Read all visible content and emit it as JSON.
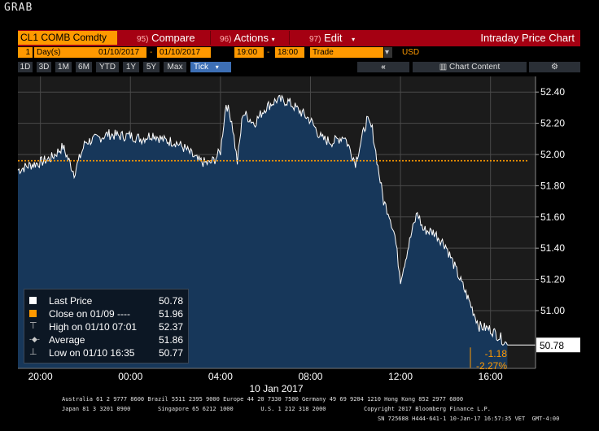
{
  "grab": "GRAB",
  "toolbar": {
    "ticker": "CL1 COMB Comdty",
    "compare_num": "95)",
    "compare": "Compare",
    "actions_num": "96)",
    "actions": "Actions",
    "edit_num": "97)",
    "edit": "Edit",
    "title": "Intraday Price Chart"
  },
  "params": {
    "period_count": "1",
    "period_unit": "Day(s)",
    "start_date": "01/10/2017",
    "dash": "-",
    "end_date": "01/10/2017",
    "start_time": "19:00",
    "dash2": "-",
    "end_time": "18:00",
    "mode": "Trade",
    "currency": "USD"
  },
  "tabs": [
    "1D",
    "3D",
    "1M",
    "6M",
    "YTD",
    "1Y",
    "5Y",
    "Max",
    "Tick"
  ],
  "active_tab": "Tick",
  "chart_content": "Chart Content",
  "legend": {
    "last_price_label": "Last Price",
    "last_price_value": "50.78",
    "close_label": "Close on 01/09 ---- ",
    "close_value": "51.96",
    "high_label": "High on 01/10 07:01",
    "high_value": "52.37",
    "average_label": "Average",
    "average_value": "51.86",
    "low_label": "Low on 01/10 16:35",
    "low_value": "50.77"
  },
  "change": {
    "abs": "-1.18",
    "pct": "-2.27%"
  },
  "last_tag": "50.78",
  "x_axis_date": "10 Jan 2017",
  "footer": {
    "line1": "Australia 61 2 9777 8600 Brazil 5511 2395 9000 Europe 44 20 7330 7500 Germany 49 69 9204 1210 Hong Kong 852 2977 6000",
    "line2a": "Japan 81 3 3201 8900        Singapore 65 6212 1000        U.S. 1 212 318 2000",
    "line2b": "Copyright 2017 Bloomberg Finance L.P.",
    "line3": "SN 725688 H444-641-1 10-Jan-17 16:57:35 VET  GMT-4:00"
  },
  "colors": {
    "accent_orange": "#ff9900",
    "toolbar_red": "#a50012",
    "area_fill": "#1a3a5e",
    "line": "#ffffff"
  },
  "icons": [
    "double-chevron-left-icon",
    "bar-chart-icon",
    "gear-icon"
  ],
  "chart_data": {
    "type": "area",
    "series": [
      {
        "name": "Last Price",
        "x": [
          "19:00",
          "19:30",
          "20:00",
          "20:30",
          "21:00",
          "21:30",
          "22:00",
          "22:30",
          "23:00",
          "23:30",
          "00:00",
          "00:30",
          "01:00",
          "01:30",
          "02:00",
          "02:30",
          "03:00",
          "03:30",
          "03:45",
          "04:00",
          "04:15",
          "04:30",
          "04:45",
          "05:00",
          "05:30",
          "06:00",
          "06:30",
          "07:00",
          "07:30",
          "08:00",
          "08:30",
          "09:00",
          "09:30",
          "10:00",
          "10:30",
          "10:45",
          "11:00",
          "11:15",
          "11:30",
          "11:45",
          "12:00",
          "12:30",
          "12:45",
          "13:00",
          "13:30",
          "14:00",
          "14:30",
          "15:00",
          "15:30",
          "16:00",
          "16:30",
          "16:45"
        ],
        "values": [
          51.9,
          51.93,
          51.95,
          51.98,
          52.05,
          51.88,
          52.08,
          52.1,
          52.13,
          52.12,
          52.12,
          52.1,
          52.13,
          52.09,
          52.08,
          52.03,
          51.96,
          51.94,
          51.97,
          52.02,
          52.33,
          52.22,
          51.95,
          52.27,
          52.2,
          52.3,
          52.35,
          52.34,
          52.28,
          52.22,
          52.1,
          52.08,
          52.12,
          51.95,
          52.22,
          52.16,
          51.92,
          51.7,
          51.62,
          51.48,
          51.2,
          51.5,
          51.63,
          51.52,
          51.5,
          51.42,
          51.25,
          51.08,
          50.9,
          50.88,
          50.82,
          50.78
        ]
      }
    ],
    "reference_lines": [
      {
        "name": "Close on 01/09",
        "value": 51.96
      }
    ],
    "x_ticks": [
      "20:00",
      "00:00",
      "04:00",
      "08:00",
      "12:00",
      "16:00"
    ],
    "x_label": "10 Jan 2017",
    "y_ticks": [
      "51.00",
      "51.20",
      "51.40",
      "51.60",
      "51.80",
      "52.00",
      "52.20",
      "52.40"
    ],
    "ylim": [
      50.63,
      52.5
    ],
    "grid": true,
    "legend_position": "bottom-left"
  }
}
